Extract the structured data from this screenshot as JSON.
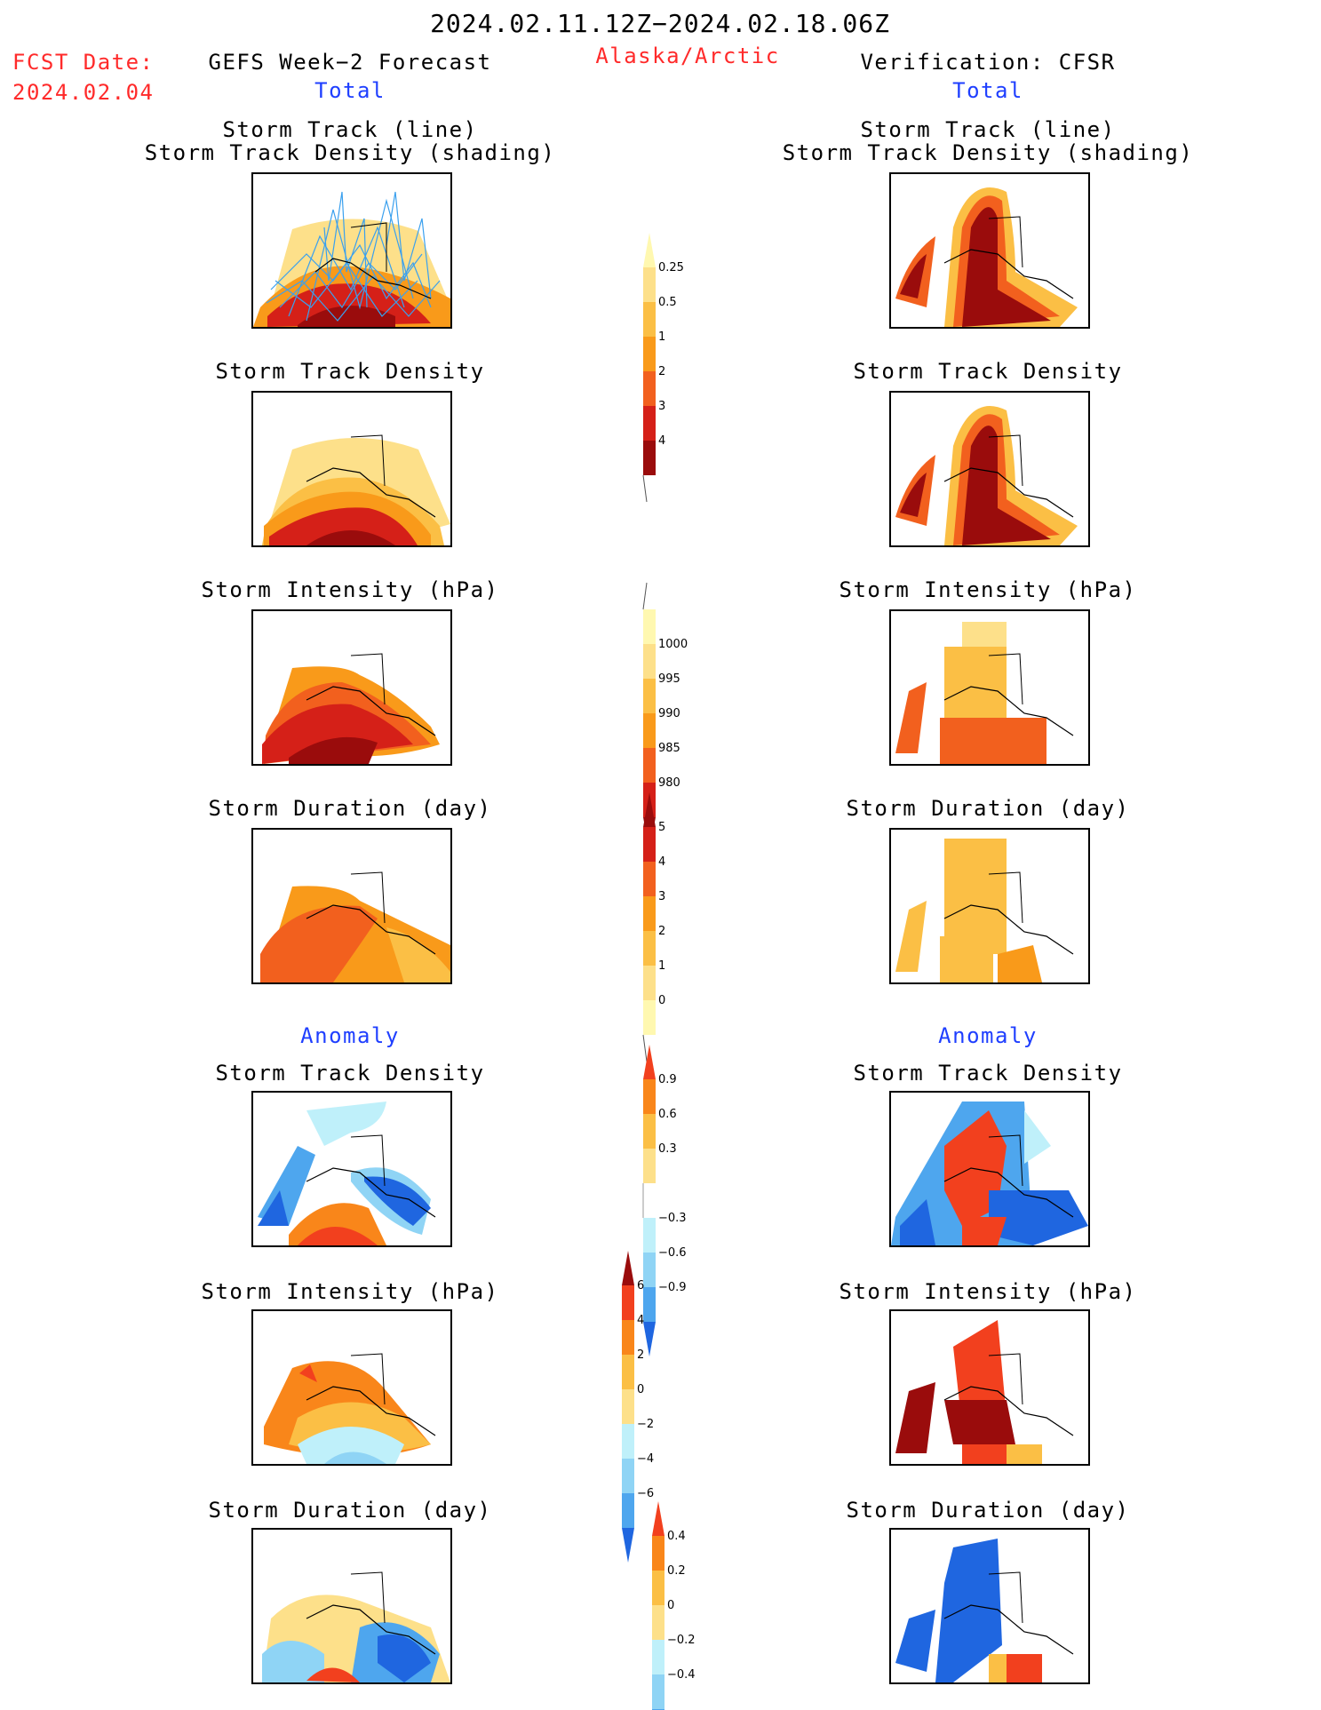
{
  "header": {
    "date_range": "2024.02.11.12Z−2024.02.18.06Z",
    "region": "Alaska/Arctic",
    "fcst_label": "FCST Date:",
    "fcst_date": "2024.02.04",
    "left_title": "GEFS Week−2 Forecast",
    "right_title": "Verification: CFSR",
    "left_sub": "Total",
    "right_sub": "Total",
    "left_anomaly": "Anomaly",
    "right_anomaly": "Anomaly"
  },
  "panels": {
    "track_line": "Storm Track (line)",
    "track_shading": "Storm Track Density (shading)",
    "density": "Storm Track Density",
    "intensity": "Storm Intensity (hPa)",
    "duration": "Storm Duration (day)"
  },
  "chart_data": [
    {
      "type": "heatmap",
      "name": "Total Storm Track Density colorbar",
      "levels": [
        "0.25",
        "0.5",
        "1",
        "2",
        "3",
        "4"
      ],
      "colors": [
        "#fff8b0",
        "#fde08a",
        "#fbbf45",
        "#f99a1a",
        "#f2601e",
        "#d52018",
        "#9a0c0c"
      ]
    },
    {
      "type": "heatmap",
      "name": "Total Storm Intensity colorbar",
      "levels": [
        "1000",
        "995",
        "990",
        "985",
        "980"
      ],
      "colors": [
        "#fff8b0",
        "#fde08a",
        "#fbbf45",
        "#f99a1a",
        "#f2601e",
        "#d52018",
        "#9a0c0c"
      ]
    },
    {
      "type": "heatmap",
      "name": "Total Storm Duration colorbar",
      "levels": [
        "5",
        "4",
        "3",
        "2",
        "1",
        "0"
      ],
      "colors": [
        "#9a0c0c",
        "#d52018",
        "#f2601e",
        "#f99a1a",
        "#fbbf45",
        "#fde08a",
        "#fff8b0"
      ]
    },
    {
      "type": "heatmap",
      "name": "Anomaly Storm Track Density colorbar",
      "levels": [
        "0.9",
        "0.6",
        "0.3",
        "−0.3",
        "−0.6",
        "−0.9"
      ],
      "colors": [
        "#f2401e",
        "#f9861a",
        "#fbbf45",
        "#fde08a",
        "#ffffff",
        "#bff0fa",
        "#8fd4f5",
        "#4ea6ee",
        "#1f66e0"
      ]
    },
    {
      "type": "heatmap",
      "name": "Anomaly Storm Intensity colorbar",
      "levels": [
        "6",
        "4",
        "2",
        "0",
        "−2",
        "−4",
        "−6"
      ],
      "colors": [
        "#9a0c0c",
        "#f2401e",
        "#f9861a",
        "#fbbf45",
        "#fde08a",
        "#bff0fa",
        "#8fd4f5",
        "#4ea6ee",
        "#1f66e0"
      ]
    },
    {
      "type": "heatmap",
      "name": "Anomaly Storm Duration colorbar",
      "levels": [
        "0.4",
        "0.2",
        "0",
        "−0.2",
        "−0.4"
      ],
      "colors": [
        "#f2401e",
        "#f9861a",
        "#fbbf45",
        "#fde08a",
        "#bff0fa",
        "#8fd4f5",
        "#4ea6ee",
        "#1f66e0"
      ]
    }
  ]
}
